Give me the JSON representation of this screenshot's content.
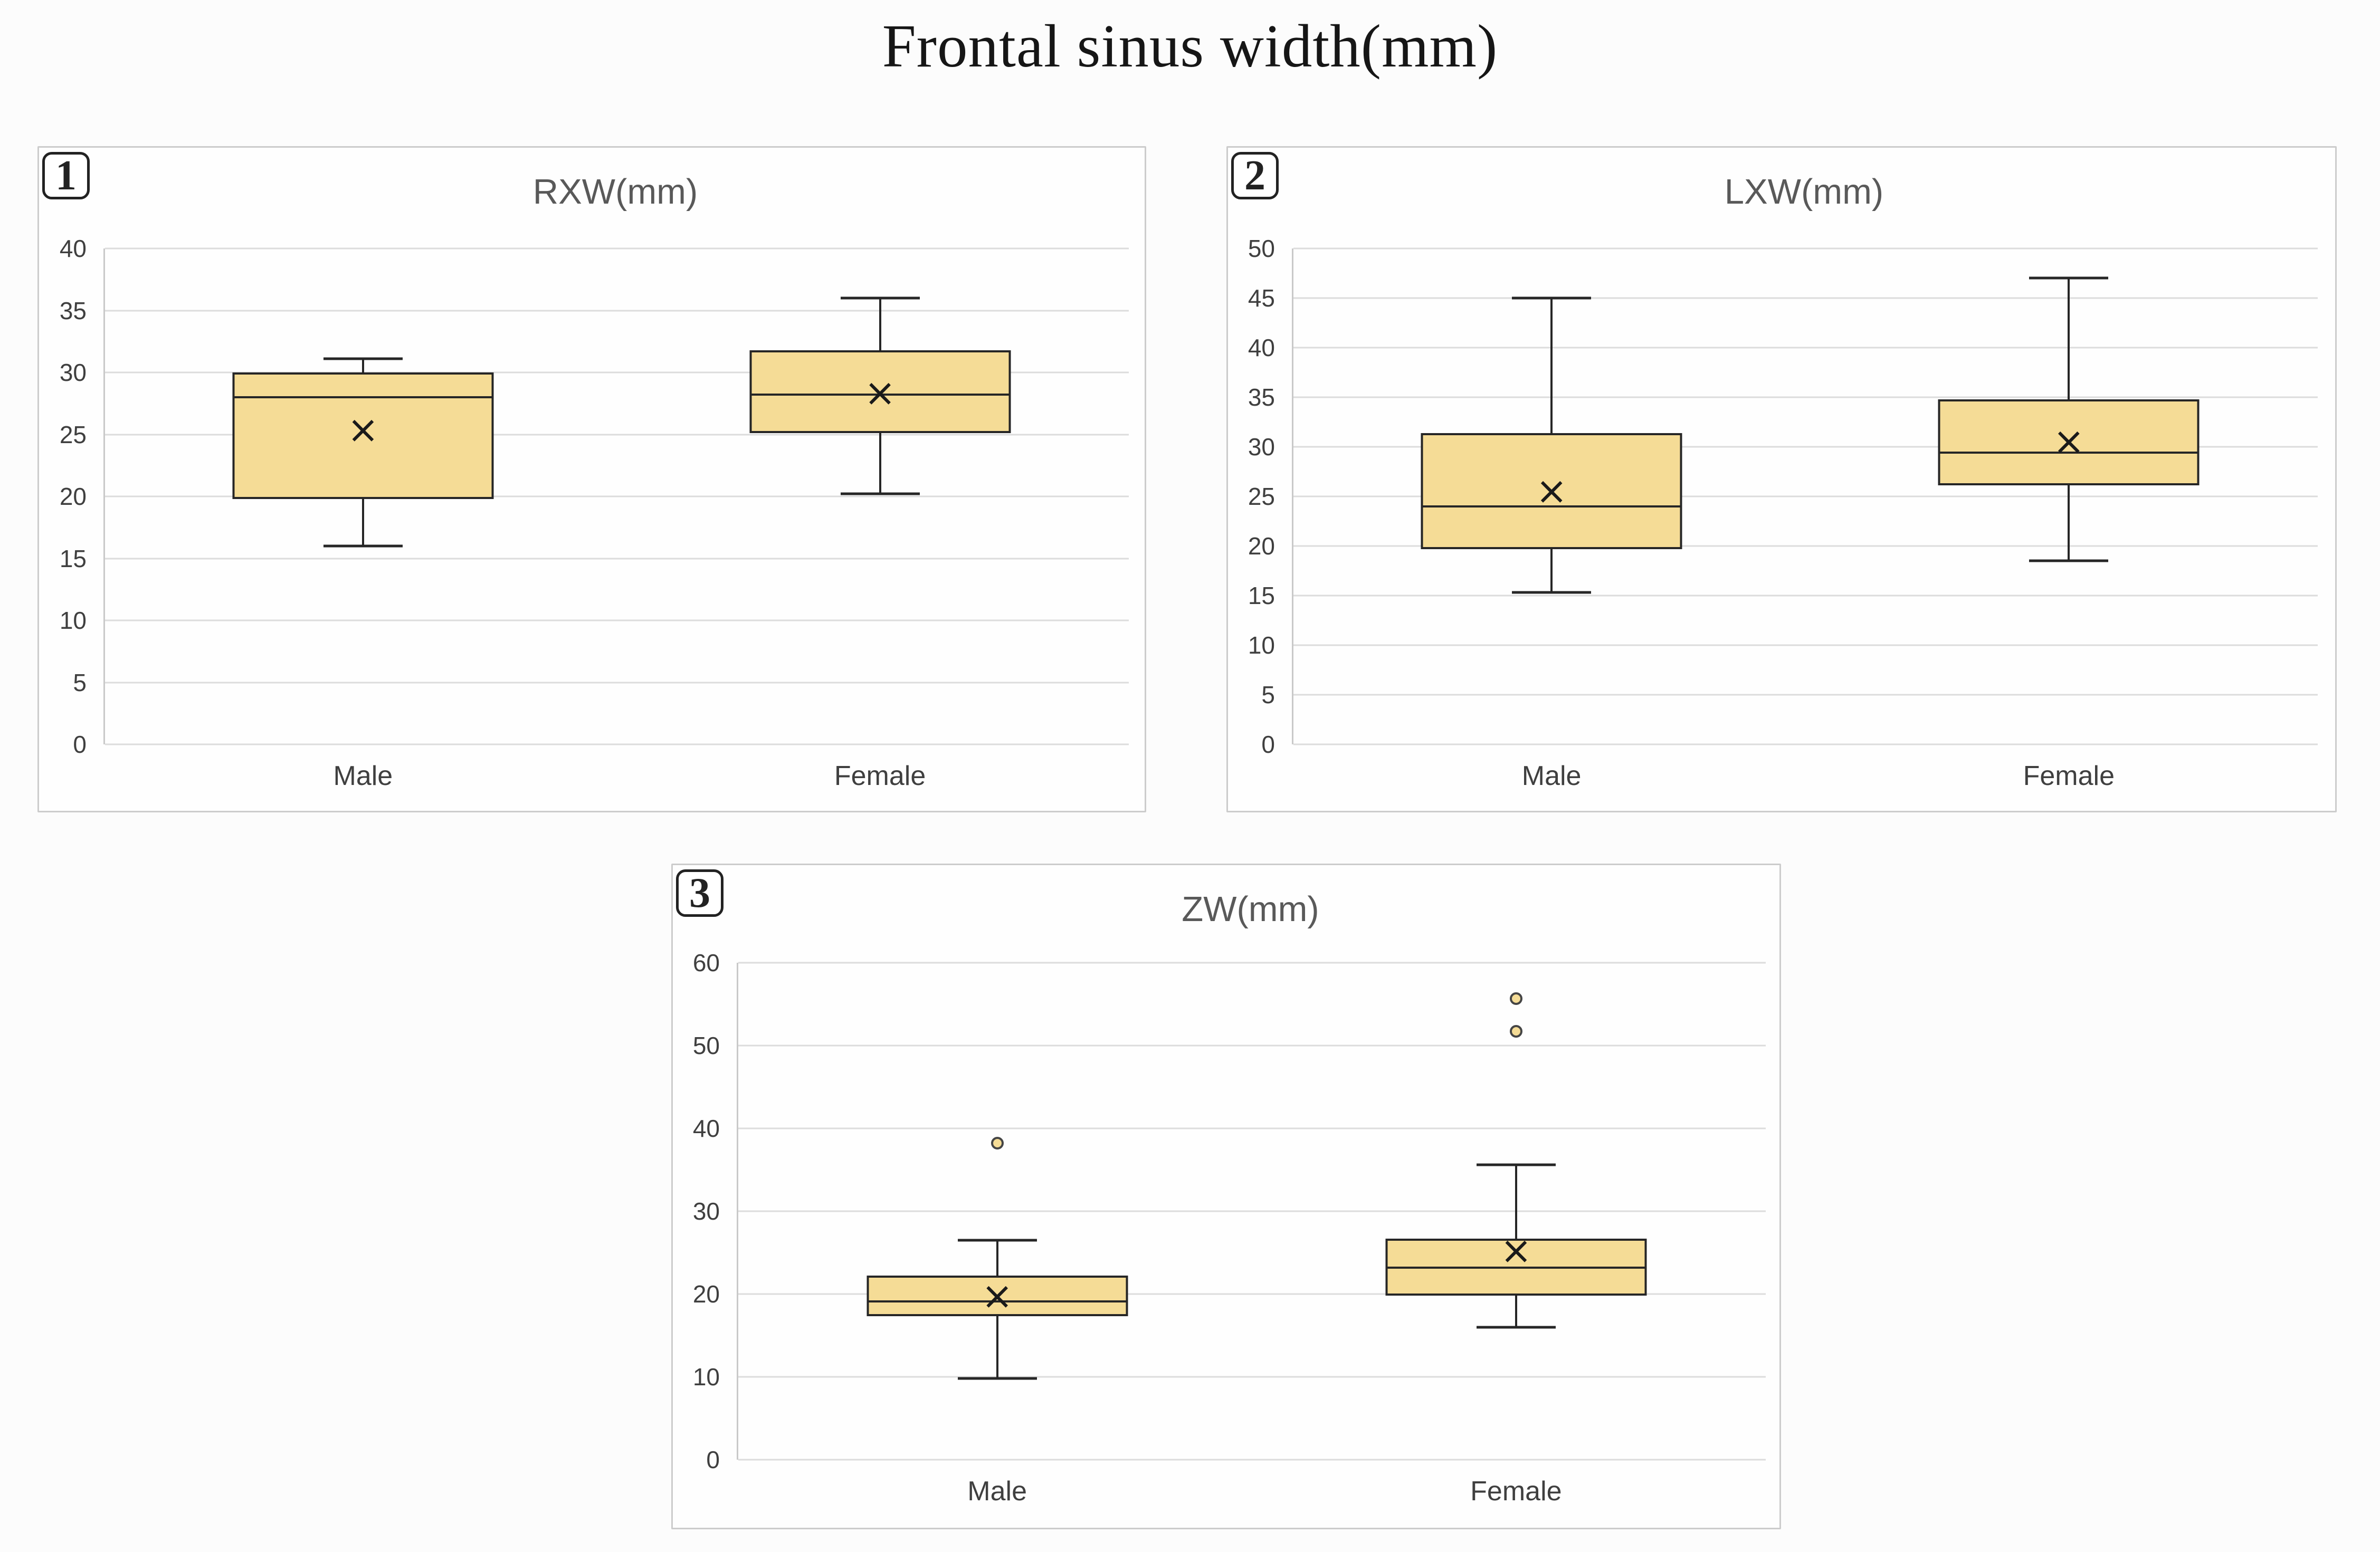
{
  "figure_title": "Frontal sinus width(mm)",
  "colors": {
    "box_fill": "#F5DC96",
    "box_stroke": "#262626",
    "gridline": "#dcdcdc",
    "panel_border": "#cccccc",
    "axis_text": "#3f3f3f",
    "chart_title_text": "#595959"
  },
  "chart_data": [
    {
      "type": "box",
      "badge": "1",
      "title": "RXW(mm)",
      "categories": [
        "Male",
        "Female"
      ],
      "ylim": [
        0,
        40
      ],
      "yticks": [
        0,
        5,
        10,
        15,
        20,
        25,
        30,
        35,
        40
      ],
      "grid": "horizontal",
      "legend": "none",
      "series": [
        {
          "category": "Male",
          "whisker_low": 16.0,
          "q1": 19.8,
          "median": 28.0,
          "mean": 25.4,
          "q3": 30.0,
          "whisker_high": 31.1,
          "outliers": []
        },
        {
          "category": "Female",
          "whisker_low": 20.2,
          "q1": 25.1,
          "median": 28.2,
          "mean": 28.4,
          "q3": 31.8,
          "whisker_high": 36.0,
          "outliers": []
        }
      ]
    },
    {
      "type": "box",
      "badge": "2",
      "title": "LXW(mm)",
      "categories": [
        "Male",
        "Female"
      ],
      "ylim": [
        0,
        50
      ],
      "yticks": [
        0,
        5,
        10,
        15,
        20,
        25,
        30,
        35,
        40,
        45,
        50
      ],
      "grid": "horizontal",
      "legend": "none",
      "series": [
        {
          "category": "Male",
          "whisker_low": 15.3,
          "q1": 19.7,
          "median": 24.0,
          "mean": 25.6,
          "q3": 31.4,
          "whisker_high": 45.0,
          "outliers": []
        },
        {
          "category": "Female",
          "whisker_low": 18.5,
          "q1": 26.1,
          "median": 29.4,
          "mean": 30.6,
          "q3": 34.8,
          "whisker_high": 47.0,
          "outliers": []
        }
      ]
    },
    {
      "type": "box",
      "badge": "3",
      "title": "ZW(mm)",
      "categories": [
        "Male",
        "Female"
      ],
      "ylim": [
        0,
        60
      ],
      "yticks": [
        0,
        10,
        20,
        30,
        40,
        50,
        60
      ],
      "grid": "horizontal",
      "legend": "none",
      "series": [
        {
          "category": "Male",
          "whisker_low": 9.8,
          "q1": 17.3,
          "median": 19.1,
          "mean": 19.8,
          "q3": 22.2,
          "whisker_high": 26.5,
          "outliers": [
            38.2
          ]
        },
        {
          "category": "Female",
          "whisker_low": 16.0,
          "q1": 19.8,
          "median": 23.2,
          "mean": 25.3,
          "q3": 26.7,
          "whisker_high": 35.6,
          "outliers": [
            51.7,
            55.7
          ]
        }
      ]
    }
  ]
}
